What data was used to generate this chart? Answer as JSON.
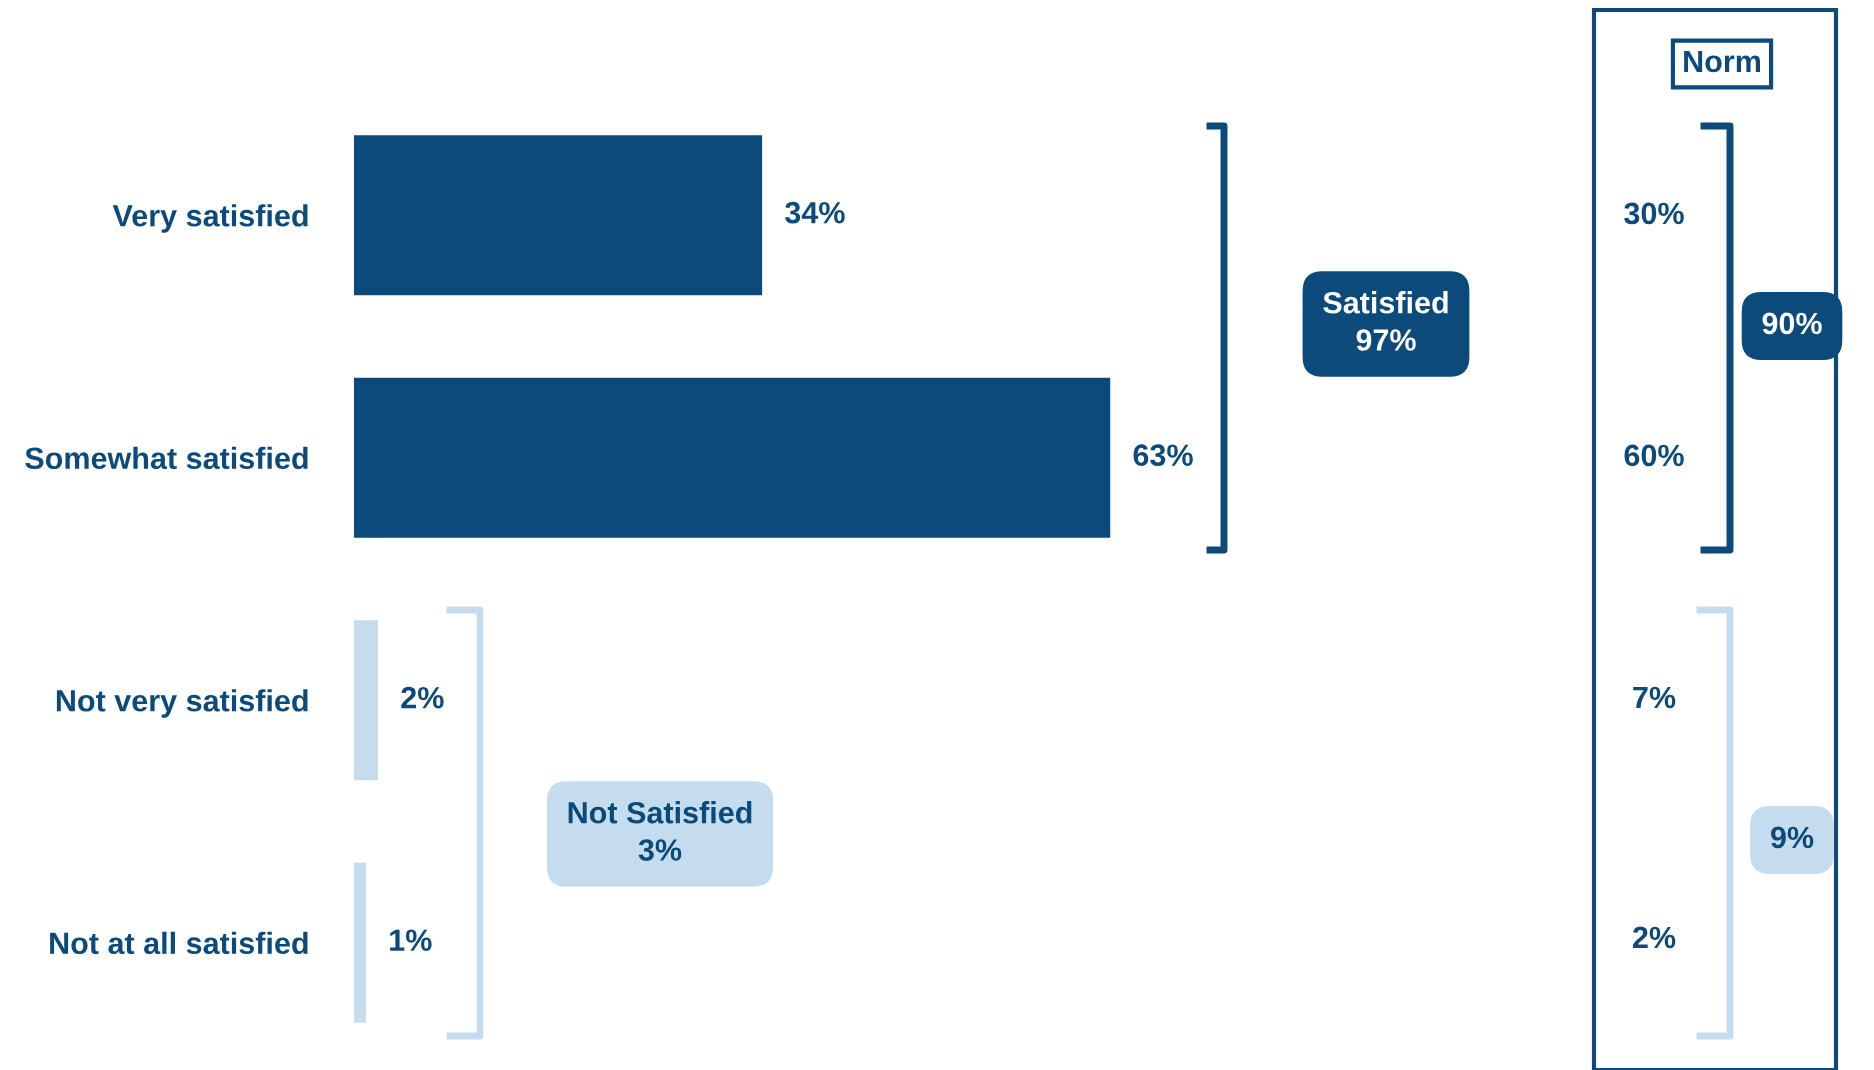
{
  "chart_data": {
    "type": "bar",
    "orientation": "horizontal",
    "categories": [
      "Very satisfied",
      "Somewhat satisfied",
      "Not very satisfied",
      "Not at all satisfied"
    ],
    "values": [
      34,
      63,
      2,
      1
    ],
    "colors": [
      "#0b4a7a",
      "#0b4a7a",
      "#c5dcef",
      "#c5dcef"
    ],
    "value_labels": [
      "34%",
      "63%",
      "2%",
      "1%"
    ],
    "annotations": [
      "Satisfied\n97%",
      "Not Satisfied\n3%",
      "Norm",
      "30%",
      "60%",
      "7%",
      "2%",
      "90%",
      "9%"
    ],
    "grid": false,
    "legend": false
  }
}
